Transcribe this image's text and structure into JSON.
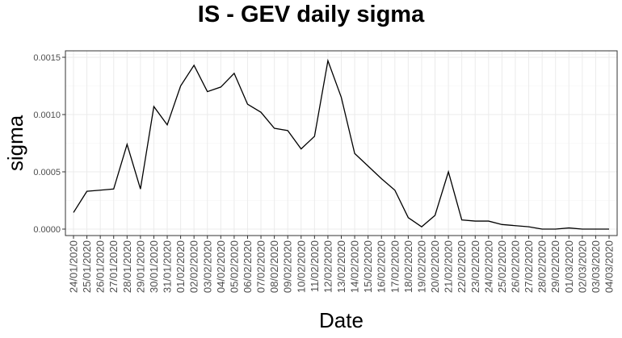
{
  "chart_data": {
    "type": "line",
    "title": "IS - GEV daily sigma",
    "xlabel": "Date",
    "ylabel": "sigma",
    "ylim": [
      0,
      0.00155
    ],
    "y_ticks": [
      "0.0000",
      "0.0005",
      "0.0010",
      "0.0015"
    ],
    "grid": true,
    "line_color": "#000000",
    "categories": [
      "24/01/2020",
      "25/01/2020",
      "26/01/2020",
      "27/01/2020",
      "28/01/2020",
      "29/01/2020",
      "30/01/2020",
      "31/01/2020",
      "01/02/2020",
      "02/02/2020",
      "03/02/2020",
      "04/02/2020",
      "05/02/2020",
      "06/02/2020",
      "07/02/2020",
      "08/02/2020",
      "09/02/2020",
      "10/02/2020",
      "11/02/2020",
      "12/02/2020",
      "13/02/2020",
      "14/02/2020",
      "15/02/2020",
      "16/02/2020",
      "17/02/2020",
      "18/02/2020",
      "19/02/2020",
      "20/02/2020",
      "21/02/2020",
      "22/02/2020",
      "23/02/2020",
      "24/02/2020",
      "25/02/2020",
      "26/02/2020",
      "27/02/2020",
      "28/02/2020",
      "29/02/2020",
      "01/03/2020",
      "02/03/2020",
      "03/03/2020",
      "04/03/2020"
    ],
    "values": [
      0.000145,
      0.00033,
      0.00034,
      0.00035,
      0.00074,
      0.00035,
      0.00107,
      0.00091,
      0.00125,
      0.00143,
      0.0012,
      0.00124,
      0.00136,
      0.00109,
      0.00102,
      0.00088,
      0.00086,
      0.0007,
      0.00081,
      0.00147,
      0.00115,
      0.00066,
      0.00055,
      0.00044,
      0.00034,
      0.0001,
      2e-05,
      0.00012,
      0.0005,
      8e-05,
      7e-05,
      7e-05,
      4e-05,
      3e-05,
      2e-05,
      0.0,
      0.0,
      1e-05,
      0.0,
      0.0,
      0.0
    ]
  }
}
